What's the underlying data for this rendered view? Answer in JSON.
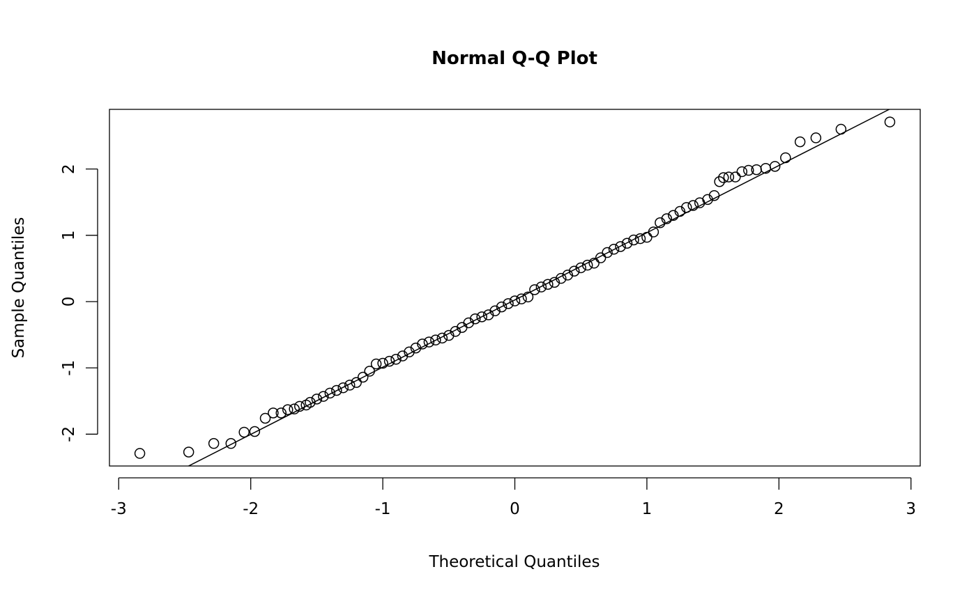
{
  "chart_data": {
    "type": "scatter",
    "title": "Normal Q-Q Plot",
    "xlabel": "Theoretical Quantiles",
    "ylabel": "Sample Quantiles",
    "xlim": [
      -3.07,
      3.07
    ],
    "ylim": [
      -2.48,
      2.9
    ],
    "xticks": [
      -3,
      -2,
      -1,
      0,
      1,
      2,
      3
    ],
    "xtick_labels": [
      "-3",
      "-2",
      "-1",
      "0",
      "1",
      "2",
      "3"
    ],
    "yticks": [
      -2,
      -1,
      0,
      1,
      2
    ],
    "ytick_labels": [
      "-2",
      "-1",
      "0",
      "1",
      "2"
    ],
    "grid": false,
    "reference_line": {
      "intercept": 0.025,
      "slope": 1.014
    },
    "x": [
      -2.84,
      -2.47,
      -2.28,
      -2.15,
      -2.05,
      -1.97,
      -1.89,
      -1.83,
      -1.77,
      -1.72,
      -1.67,
      -1.63,
      -1.58,
      -1.55,
      -1.5,
      -1.45,
      -1.4,
      -1.35,
      -1.3,
      -1.25,
      -1.2,
      -1.15,
      -1.1,
      -1.05,
      -1.0,
      -0.95,
      -0.9,
      -0.85,
      -0.8,
      -0.75,
      -0.7,
      -0.65,
      -0.6,
      -0.55,
      -0.5,
      -0.45,
      -0.4,
      -0.35,
      -0.3,
      -0.25,
      -0.2,
      -0.15,
      -0.1,
      -0.05,
      0.0,
      0.05,
      0.1,
      0.15,
      0.2,
      0.25,
      0.3,
      0.35,
      0.4,
      0.45,
      0.5,
      0.55,
      0.6,
      0.65,
      0.7,
      0.75,
      0.8,
      0.85,
      0.9,
      0.95,
      1.0,
      1.05,
      1.1,
      1.15,
      1.2,
      1.25,
      1.3,
      1.35,
      1.4,
      1.46,
      1.51,
      1.55,
      1.58,
      1.62,
      1.67,
      1.72,
      1.77,
      1.83,
      1.9,
      1.97,
      2.05,
      2.16,
      2.28,
      2.47,
      2.84
    ],
    "y": [
      -2.29,
      -2.27,
      -2.14,
      -2.14,
      -1.97,
      -1.96,
      -1.76,
      -1.68,
      -1.68,
      -1.63,
      -1.62,
      -1.58,
      -1.56,
      -1.52,
      -1.47,
      -1.43,
      -1.38,
      -1.34,
      -1.3,
      -1.26,
      -1.22,
      -1.14,
      -1.05,
      -0.94,
      -0.93,
      -0.9,
      -0.87,
      -0.82,
      -0.76,
      -0.7,
      -0.64,
      -0.61,
      -0.58,
      -0.55,
      -0.51,
      -0.45,
      -0.39,
      -0.32,
      -0.26,
      -0.23,
      -0.2,
      -0.14,
      -0.08,
      -0.03,
      0.01,
      0.04,
      0.07,
      0.18,
      0.22,
      0.26,
      0.29,
      0.35,
      0.4,
      0.46,
      0.51,
      0.55,
      0.58,
      0.66,
      0.74,
      0.79,
      0.83,
      0.88,
      0.93,
      0.95,
      0.97,
      1.05,
      1.19,
      1.25,
      1.3,
      1.36,
      1.42,
      1.45,
      1.49,
      1.54,
      1.6,
      1.81,
      1.87,
      1.88,
      1.88,
      1.96,
      1.98,
      1.99,
      2.01,
      2.04,
      2.17,
      2.41,
      2.47,
      2.6,
      2.71
    ]
  }
}
